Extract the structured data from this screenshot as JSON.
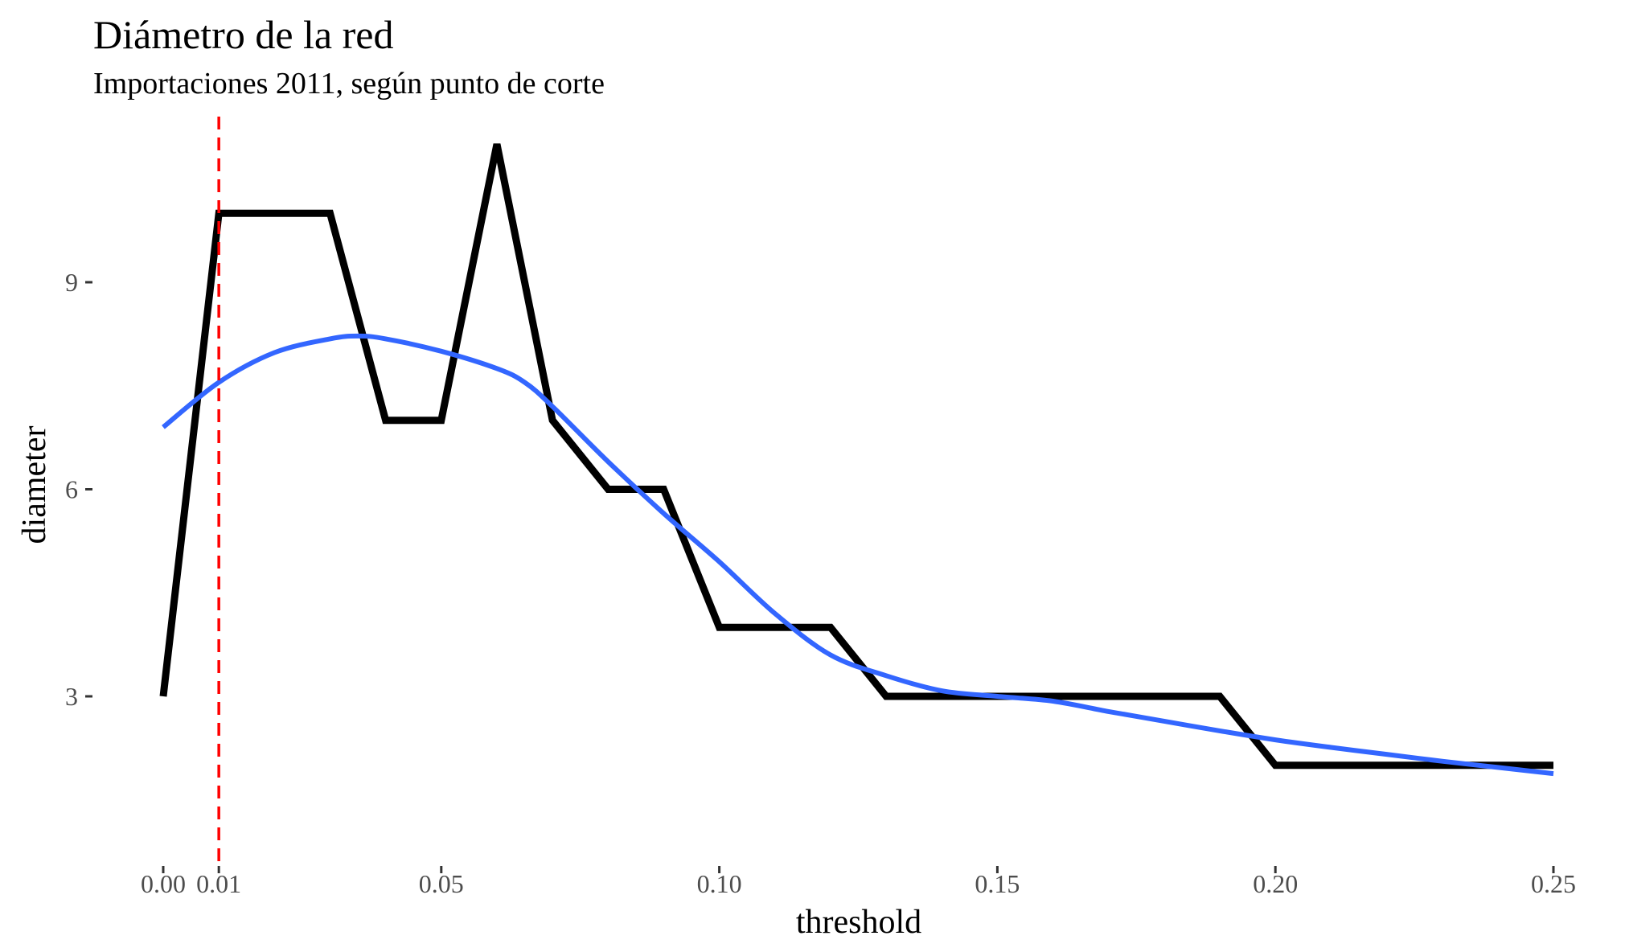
{
  "chart_data": {
    "type": "line",
    "title": "Diámetro de la red",
    "subtitle": "Importaciones 2011, según punto de corte",
    "xlabel": "threshold",
    "ylabel": "diameter",
    "xlim": [
      0,
      0.25
    ],
    "ylim": [
      0.6,
      11.4
    ],
    "grid": false,
    "x_ticks": [
      0,
      0.01,
      0.05,
      0.1,
      0.15,
      0.2,
      0.25
    ],
    "x_tick_labels": [
      "0.00",
      "0.01",
      "0.05",
      "0.10",
      "0.15",
      "0.20",
      "0.25"
    ],
    "y_ticks": [
      3,
      6,
      9
    ],
    "y_tick_labels": [
      "3",
      "6",
      "9"
    ],
    "reference_line": {
      "axis": "x",
      "value": 0.01,
      "style": "dashed",
      "color": "#ff0000"
    },
    "series": [
      {
        "style": "line",
        "color": "#000000",
        "x": [
          0,
          0.01,
          0.02,
          0.03,
          0.04,
          0.05,
          0.06,
          0.07,
          0.08,
          0.09,
          0.1,
          0.11,
          0.12,
          0.13,
          0.14,
          0.15,
          0.16,
          0.17,
          0.18,
          0.19,
          0.2,
          0.21,
          0.22,
          0.23,
          0.24,
          0.25
        ],
        "y": [
          3,
          10,
          10,
          10,
          7,
          7,
          11,
          7,
          6,
          6,
          4,
          4,
          4,
          3,
          3,
          3,
          3,
          3,
          3,
          3,
          2,
          2,
          2,
          2,
          2,
          2
        ]
      },
      {
        "style": "smooth",
        "color": "#3366ff",
        "x": [
          0,
          0.01,
          0.02,
          0.03,
          0.035,
          0.04,
          0.05,
          0.06,
          0.065,
          0.07,
          0.08,
          0.09,
          0.1,
          0.11,
          0.12,
          0.13,
          0.14,
          0.15,
          0.16,
          0.17,
          0.18,
          0.19,
          0.2,
          0.21,
          0.22,
          0.23,
          0.24,
          0.25
        ],
        "y": [
          6.9,
          7.55,
          7.98,
          8.18,
          8.22,
          8.18,
          8.0,
          7.75,
          7.55,
          7.2,
          6.4,
          5.65,
          4.95,
          4.2,
          3.6,
          3.3,
          3.08,
          3.0,
          2.93,
          2.78,
          2.64,
          2.5,
          2.37,
          2.26,
          2.16,
          2.06,
          1.97,
          1.88
        ]
      }
    ]
  }
}
